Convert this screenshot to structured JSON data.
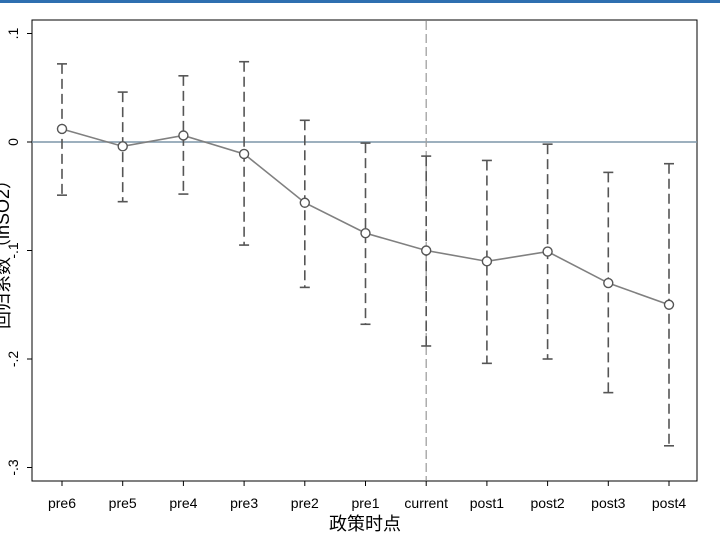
{
  "chart_data": {
    "type": "line",
    "title": "",
    "xlabel": "政策时点",
    "ylabel": "回归系数（lnSO2）",
    "categories": [
      "pre6",
      "pre5",
      "pre4",
      "pre3",
      "pre2",
      "pre1",
      "current",
      "post1",
      "post2",
      "post3",
      "post4"
    ],
    "series": [
      {
        "values": [
          0.012,
          -0.004,
          0.006,
          -0.011,
          -0.056,
          -0.084,
          -0.1,
          -0.11,
          -0.101,
          -0.13,
          -0.15
        ],
        "ci_low": [
          -0.049,
          -0.055,
          -0.048,
          -0.095,
          -0.134,
          -0.168,
          -0.188,
          -0.204,
          -0.2,
          -0.231,
          -0.28
        ],
        "ci_high": [
          0.072,
          0.046,
          0.061,
          0.074,
          0.02,
          -0.001,
          -0.013,
          -0.017,
          -0.002,
          -0.028,
          -0.02
        ]
      }
    ],
    "yticks": [
      ".1",
      "0",
      "-.1",
      "-.2",
      "-.3"
    ],
    "ytick_values": [
      0.1,
      0,
      -0.1,
      -0.2,
      -0.3
    ],
    "ylim": [
      -0.31,
      0.11
    ],
    "reference_hline": 0,
    "reference_vline": "current",
    "grid": false,
    "colors": {
      "line": "#808080",
      "ci": "#555555",
      "hline": "#7d95a8",
      "vline": "#a0a0a0",
      "axis": "#000000",
      "accent_bar": "#2f6fb0"
    }
  }
}
